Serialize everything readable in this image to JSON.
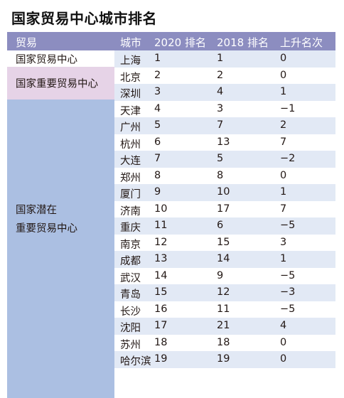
{
  "title": "国家贸易中心城市排名",
  "columns": {
    "group": "贸易",
    "city": "城市",
    "rank2020": "2020 排名",
    "rank2018": "2018 排名",
    "change": "上升名次"
  },
  "groups": {
    "national": "国家贸易中心",
    "important": "国家重要贸易中心",
    "potential_line1": "国家潜在",
    "potential_line2": "重要贸易中心"
  },
  "rows": [
    {
      "city": "上海",
      "r2020": "1",
      "r2018": "1",
      "change": "0"
    },
    {
      "city": "北京",
      "r2020": "2",
      "r2018": "2",
      "change": "0"
    },
    {
      "city": "深圳",
      "r2020": "3",
      "r2018": "4",
      "change": "1"
    },
    {
      "city": "天津",
      "r2020": "4",
      "r2018": "3",
      "change": "−1"
    },
    {
      "city": "广州",
      "r2020": "5",
      "r2018": "7",
      "change": "2"
    },
    {
      "city": "杭州",
      "r2020": "6",
      "r2018": "13",
      "change": "7"
    },
    {
      "city": "大连",
      "r2020": "7",
      "r2018": "5",
      "change": "−2"
    },
    {
      "city": "郑州",
      "r2020": "8",
      "r2018": "8",
      "change": "0"
    },
    {
      "city": "厦门",
      "r2020": "9",
      "r2018": "10",
      "change": "1"
    },
    {
      "city": "济南",
      "r2020": "10",
      "r2018": "17",
      "change": "7"
    },
    {
      "city": "重庆",
      "r2020": "11",
      "r2018": "6",
      "change": "−5"
    },
    {
      "city": "南京",
      "r2020": "12",
      "r2018": "15",
      "change": "3"
    },
    {
      "city": "成都",
      "r2020": "13",
      "r2018": "14",
      "change": "1"
    },
    {
      "city": "武汉",
      "r2020": "14",
      "r2018": "9",
      "change": "−5"
    },
    {
      "city": "青岛",
      "r2020": "15",
      "r2018": "12",
      "change": "−3"
    },
    {
      "city": "长沙",
      "r2020": "16",
      "r2018": "11",
      "change": "−5"
    },
    {
      "city": "沈阳",
      "r2020": "17",
      "r2018": "21",
      "change": "4"
    },
    {
      "city": "苏州",
      "r2020": "18",
      "r2018": "18",
      "change": "0"
    },
    {
      "city": "哈尔滨",
      "r2020": "19",
      "r2018": "19",
      "change": "0"
    }
  ],
  "colors": {
    "header": "#8c8dc0",
    "important_group": "#e6d3e7",
    "potential_group": "#abbfe2",
    "row_shade": "#e2e9f5"
  }
}
